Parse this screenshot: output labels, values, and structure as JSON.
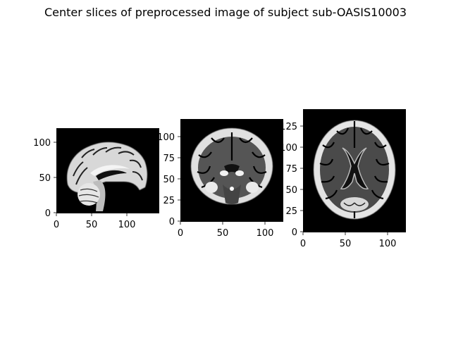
{
  "figure": {
    "title": "Center slices of preprocessed image of subject sub-OASIS10003"
  },
  "panels": [
    {
      "view": "sagittal",
      "xticks": [
        "0",
        "50",
        "100"
      ],
      "yticks": [
        "0",
        "50",
        "100"
      ],
      "xlim": [
        0,
        145
      ],
      "ylim": [
        0,
        121
      ]
    },
    {
      "view": "coronal",
      "xticks": [
        "0",
        "50",
        "100"
      ],
      "yticks": [
        "0",
        "25",
        "50",
        "75",
        "100"
      ],
      "xlim": [
        0,
        121
      ],
      "ylim": [
        0,
        121
      ]
    },
    {
      "view": "axial",
      "xticks": [
        "0",
        "50",
        "100"
      ],
      "yticks": [
        "0",
        "25",
        "50",
        "75",
        "100",
        "125"
      ],
      "xlim": [
        0,
        121
      ],
      "ylim": [
        0,
        145
      ]
    }
  ],
  "colors": {
    "background": "#000000",
    "tissue": "#ffffff",
    "gray_matter": "#9a9a9a"
  }
}
